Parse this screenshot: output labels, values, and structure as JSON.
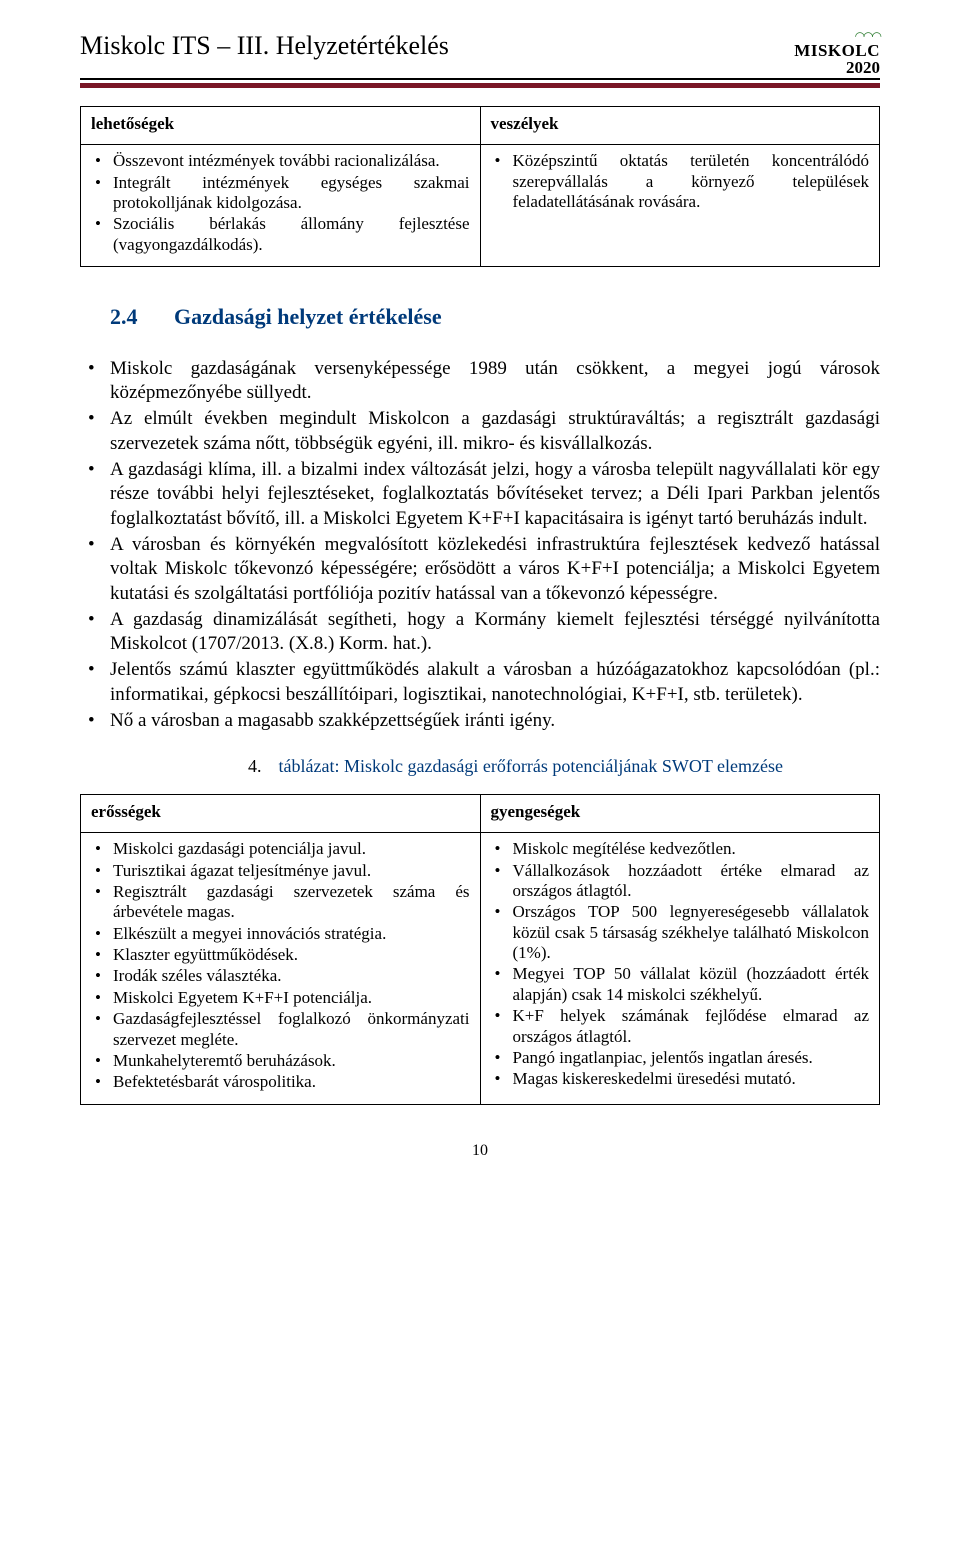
{
  "header": {
    "title": "Miskolc ITS – III. Helyzetértékelés",
    "logo_text": "MISK",
    "logo_o": "O",
    "logo_text2": "LC",
    "logo_year": "2020"
  },
  "swot1": {
    "headers": [
      "lehetőségek",
      "veszélyek"
    ],
    "left": [
      "Összevont intézmények további racionalizálása.",
      "Integrált intézmények egységes szakmai protokolljának kidolgozása.",
      "Szociális bérlakás állomány fejlesztése (vagyongazdálkodás)."
    ],
    "right": [
      "Középszintű oktatás területén koncentrálódó szerepvállalás a környező települések feladatellátásának rovására."
    ]
  },
  "section": {
    "number": "2.4",
    "title": "Gazdasági helyzet értékelése"
  },
  "body": [
    "Miskolc gazdaságának versenyképessége 1989 után csökkent, a megyei jogú városok középmezőnyébe süllyedt.",
    "Az elmúlt években megindult Miskolcon a gazdasági struktúraváltás; a regisztrált gazdasági szervezetek száma nőtt, többségük egyéni, ill. mikro- és kisvállalkozás.",
    "A gazdasági klíma, ill. a bizalmi index változását jelzi, hogy a városba települt nagyvállalati kör egy része további helyi fejlesztéseket, foglalkoztatás bővítéseket tervez; a Déli Ipari Parkban jelentős foglalkoztatást bővítő, ill. a Miskolci Egyetem K+F+I kapacitásaira is igényt tartó beruházás indult.",
    "A városban és környékén megvalósított közlekedési infrastruktúra fejlesztések kedvező hatással voltak Miskolc tőkevonzó képességére; erősödött a város K+F+I potenciálja; a Miskolci Egyetem kutatási és szolgáltatási portfóliója pozitív hatással van a tőkevonzó képességre.",
    "A gazdaság dinamizálását segítheti, hogy a Kormány kiemelt fejlesztési térséggé nyilvánította Miskolcot (1707/2013. (X.8.) Korm. hat.).",
    "Jelentős számú klaszter együttműködés alakult a városban a húzóágazatokhoz kapcsolódóan (pl.: informatikai, gépkocsi beszállítóipari, logisztikai, nanotechnológiai, K+F+I, stb. területek).",
    "Nő a városban a magasabb szakképzettségűek iránti igény."
  ],
  "caption": {
    "number": "4.",
    "text": "táblázat: Miskolc gazdasági erőforrás potenciáljának SWOT elemzése"
  },
  "swot2": {
    "headers": [
      "erősségek",
      "gyengeségek"
    ],
    "left": [
      "Miskolci gazdasági potenciálja javul.",
      "Turisztikai ágazat teljesítménye javul.",
      "Regisztrált gazdasági szervezetek száma és árbevétele magas.",
      "Elkészült a megyei innovációs stratégia.",
      "Klaszter együttműködések.",
      "Irodák széles választéka.",
      "Miskolci Egyetem K+F+I potenciálja.",
      "Gazdaságfejlesztéssel foglalkozó önkormányzati szervezet megléte.",
      " Munkahelyteremtő beruházások.",
      "Befektetésbarát várospolitika."
    ],
    "right": [
      "Miskolc megítélése kedvezőtlen.",
      "Vállalkozások hozzáadott értéke elmarad az országos átlagtól.",
      "Országos TOP 500 legnyereségesebb vállalatok közül csak 5 társaság székhelye található Miskolcon (1%).",
      "Megyei TOP 50 vállalat közül (hozzáadott érték alapján) csak 14 miskolci székhelyű.",
      "K+F helyek számának fejlődése elmarad az országos átlagtól.",
      "Pangó ingatlanpiac, jelentős ingatlan áresés.",
      "Magas kiskereskedelmi üresedési mutató."
    ]
  },
  "page_number": "10"
}
